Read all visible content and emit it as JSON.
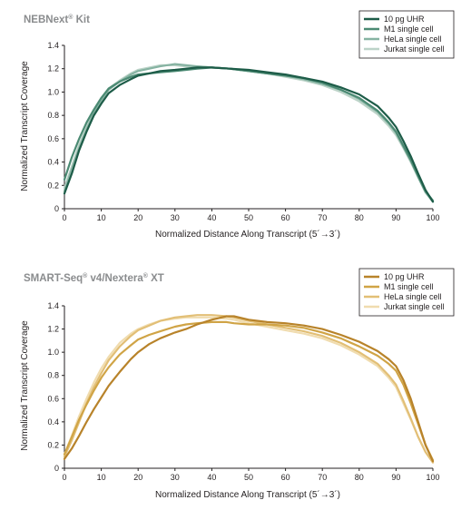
{
  "chart_data": [
    {
      "type": "line",
      "title": "NEBNext",
      "title_sup": "®",
      "title_tail": " Kit",
      "xlabel": "Normalized Distance Along Transcript (5´→3´)",
      "ylabel": "Normalized Transcript Coverage",
      "xlim": [
        0,
        100
      ],
      "ylim": [
        0,
        1.4
      ],
      "xticks": [
        "0",
        "10",
        "20",
        "30",
        "40",
        "50",
        "60",
        "70",
        "80",
        "90",
        "100"
      ],
      "yticks": [
        "0",
        "0.2",
        "0.4",
        "0.6",
        "0.8",
        "1.0",
        "1.2",
        "1.4"
      ],
      "grid": false,
      "legend_position": "top-right",
      "x": [
        0,
        2,
        4,
        6,
        8,
        10,
        12,
        15,
        18,
        20,
        23,
        26,
        30,
        33,
        36,
        40,
        45,
        50,
        55,
        60,
        65,
        70,
        75,
        80,
        85,
        88,
        90,
        92,
        94,
        96,
        98,
        100
      ],
      "series": [
        {
          "name": "10 pg UHR",
          "color": "#1d5c48",
          "values": [
            0.13,
            0.3,
            0.5,
            0.66,
            0.8,
            0.9,
            0.99,
            1.06,
            1.11,
            1.14,
            1.16,
            1.18,
            1.19,
            1.2,
            1.21,
            1.21,
            1.2,
            1.19,
            1.17,
            1.15,
            1.12,
            1.09,
            1.04,
            0.98,
            0.88,
            0.78,
            0.7,
            0.58,
            0.45,
            0.3,
            0.16,
            0.06
          ]
        },
        {
          "name": "M1 single cell",
          "color": "#4b8a73",
          "values": [
            0.25,
            0.44,
            0.6,
            0.74,
            0.85,
            0.95,
            1.03,
            1.09,
            1.13,
            1.15,
            1.16,
            1.17,
            1.18,
            1.19,
            1.2,
            1.21,
            1.2,
            1.18,
            1.16,
            1.14,
            1.12,
            1.08,
            1.02,
            0.95,
            0.84,
            0.74,
            0.66,
            0.54,
            0.42,
            0.28,
            0.15,
            0.07
          ]
        },
        {
          "name": "HeLa single cell",
          "color": "#86b3a2",
          "values": [
            0.15,
            0.34,
            0.52,
            0.68,
            0.82,
            0.93,
            1.02,
            1.09,
            1.15,
            1.18,
            1.2,
            1.22,
            1.24,
            1.23,
            1.22,
            1.21,
            1.2,
            1.18,
            1.16,
            1.14,
            1.11,
            1.07,
            1.02,
            0.94,
            0.83,
            0.73,
            0.65,
            0.53,
            0.41,
            0.27,
            0.14,
            0.06
          ]
        },
        {
          "name": "Jurkat single cell",
          "color": "#bcd3c8",
          "values": [
            0.18,
            0.36,
            0.55,
            0.7,
            0.84,
            0.94,
            1.03,
            1.1,
            1.16,
            1.19,
            1.21,
            1.23,
            1.23,
            1.22,
            1.22,
            1.21,
            1.2,
            1.18,
            1.16,
            1.13,
            1.1,
            1.06,
            1.0,
            0.92,
            0.81,
            0.71,
            0.63,
            0.52,
            0.4,
            0.27,
            0.14,
            0.06
          ]
        }
      ]
    },
    {
      "type": "line",
      "title": "SMART-Seq",
      "title_sup": "®",
      "title_tail": " v4/Nextera",
      "title_sup2": "®",
      "title_tail2": " XT",
      "xlabel": "Normalized Distance Along Transcript (5´→3´)",
      "ylabel": "Normalized Transcript Coverage",
      "xlim": [
        0,
        100
      ],
      "ylim": [
        0,
        1.4
      ],
      "xticks": [
        "0",
        "10",
        "20",
        "30",
        "40",
        "50",
        "60",
        "70",
        "80",
        "90",
        "100"
      ],
      "yticks": [
        "0",
        "0.2",
        "0.4",
        "0.6",
        "0.8",
        "1.0",
        "1.2",
        "1.4"
      ],
      "grid": false,
      "legend_position": "top-right",
      "x": [
        0,
        2,
        4,
        6,
        8,
        10,
        12,
        15,
        18,
        20,
        23,
        26,
        30,
        33,
        36,
        40,
        44,
        46,
        50,
        55,
        60,
        65,
        70,
        75,
        80,
        85,
        88,
        90,
        92,
        94,
        96,
        98,
        100
      ],
      "series": [
        {
          "name": "10 pg UHR",
          "color": "#b8832a",
          "values": [
            0.08,
            0.17,
            0.28,
            0.4,
            0.51,
            0.61,
            0.71,
            0.83,
            0.94,
            1.0,
            1.07,
            1.12,
            1.17,
            1.2,
            1.24,
            1.28,
            1.31,
            1.31,
            1.28,
            1.26,
            1.25,
            1.23,
            1.2,
            1.15,
            1.09,
            1.01,
            0.94,
            0.88,
            0.76,
            0.6,
            0.4,
            0.2,
            0.06
          ]
        },
        {
          "name": "M1 single cell",
          "color": "#d0a446",
          "values": [
            0.12,
            0.27,
            0.42,
            0.55,
            0.67,
            0.78,
            0.87,
            0.98,
            1.06,
            1.11,
            1.15,
            1.18,
            1.22,
            1.24,
            1.25,
            1.26,
            1.26,
            1.25,
            1.24,
            1.24,
            1.23,
            1.21,
            1.17,
            1.12,
            1.05,
            0.97,
            0.9,
            0.84,
            0.72,
            0.56,
            0.38,
            0.2,
            0.07
          ]
        },
        {
          "name": "HeLa single cell",
          "color": "#e2bf76",
          "values": [
            0.1,
            0.24,
            0.4,
            0.56,
            0.7,
            0.82,
            0.93,
            1.05,
            1.14,
            1.19,
            1.23,
            1.27,
            1.3,
            1.31,
            1.32,
            1.32,
            1.31,
            1.3,
            1.27,
            1.24,
            1.21,
            1.18,
            1.14,
            1.08,
            1.0,
            0.9,
            0.8,
            0.72,
            0.58,
            0.43,
            0.27,
            0.14,
            0.05
          ]
        },
        {
          "name": "Jurkat single cell",
          "color": "#f0dcaf",
          "values": [
            0.12,
            0.28,
            0.45,
            0.6,
            0.74,
            0.86,
            0.96,
            1.08,
            1.16,
            1.2,
            1.24,
            1.27,
            1.29,
            1.3,
            1.3,
            1.3,
            1.29,
            1.28,
            1.25,
            1.22,
            1.19,
            1.16,
            1.12,
            1.06,
            0.98,
            0.88,
            0.78,
            0.7,
            0.56,
            0.42,
            0.27,
            0.14,
            0.05
          ]
        }
      ]
    }
  ]
}
